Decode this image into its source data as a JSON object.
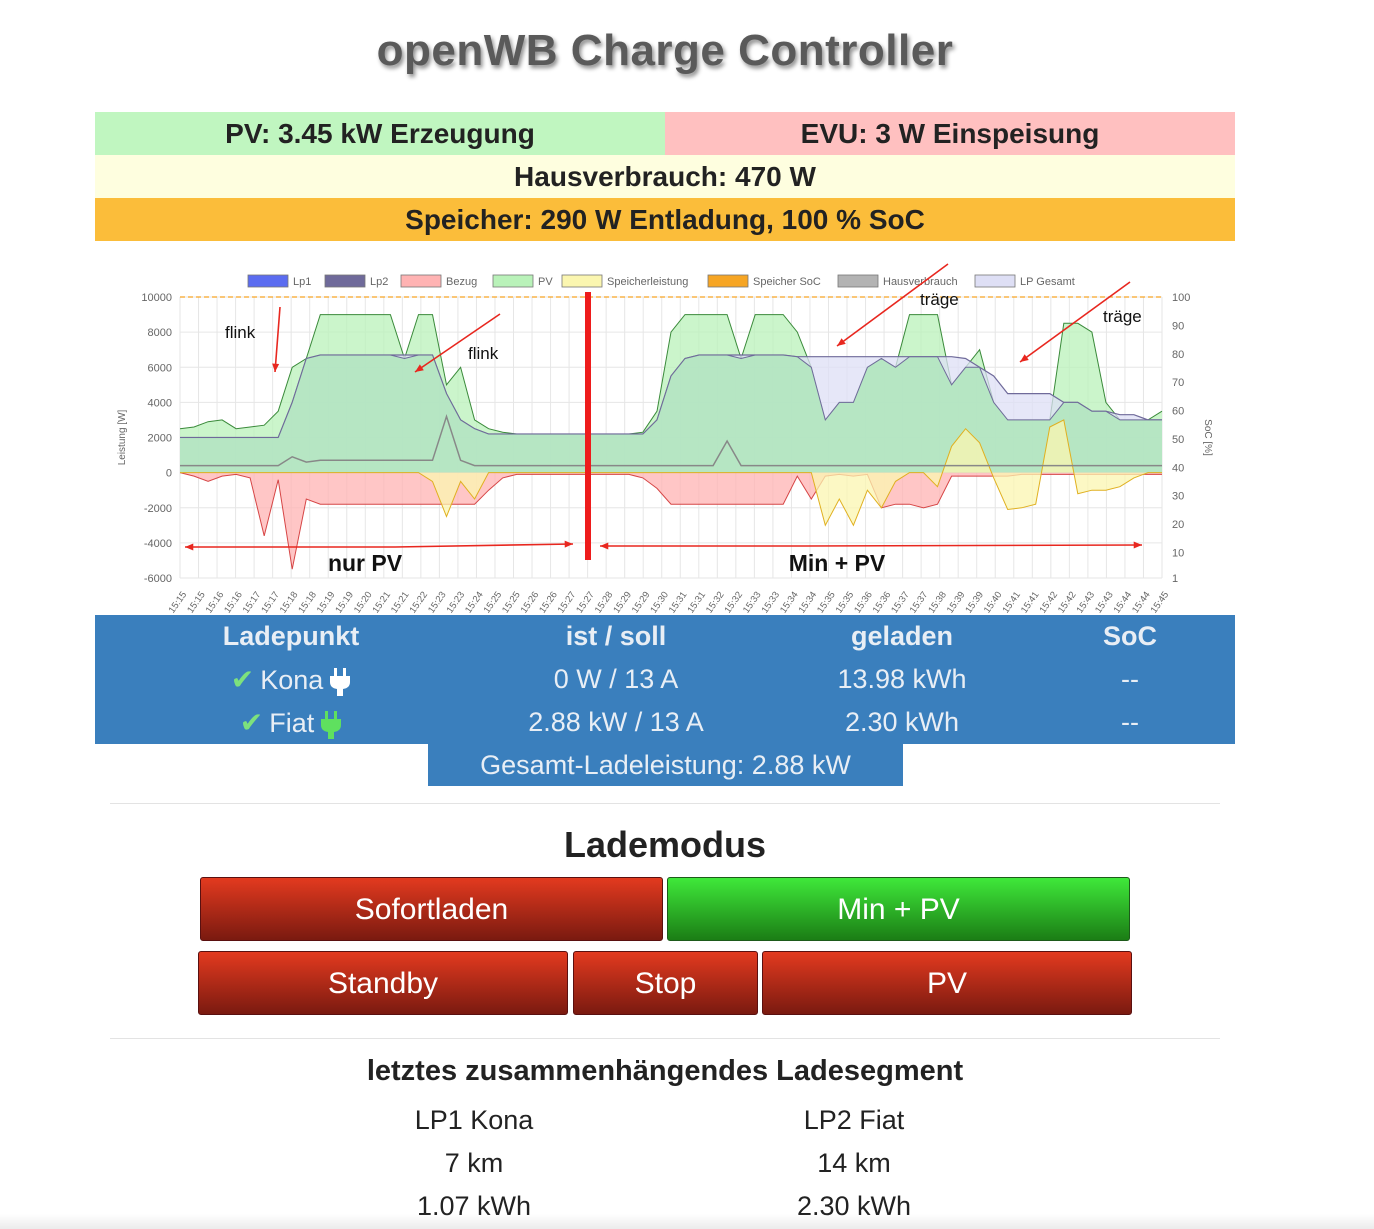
{
  "title": "openWB Charge Controller",
  "status": {
    "pv": "PV: 3.45 kW Erzeugung",
    "evu": "EVU: 3 W Einspeisung",
    "haus": "Hausverbrauch: 470 W",
    "speicher": "Speicher: 290 W Entladung, 100 % SoC"
  },
  "chart_data": {
    "type": "area",
    "legend": [
      "Lp1",
      "Lp2",
      "Bezug",
      "PV",
      "Speicherleistung",
      "Speicher SoC",
      "Hausverbrauch",
      "LP Gesamt"
    ],
    "legend_colors": [
      "#5b6cf0",
      "#6f6a9a",
      "#ffb3b3",
      "#b9f2b9",
      "#fbf6b0",
      "#f6a524",
      "#b3b3b3",
      "#dedff5"
    ],
    "ylabel": "Leistung [W]",
    "y2label": "SoC [%]",
    "yticks": [
      "10000",
      "8000",
      "6000",
      "4000",
      "2000",
      "0",
      "-2000",
      "-4000",
      "-6000"
    ],
    "y2ticks": [
      "100",
      "90",
      "80",
      "70",
      "60",
      "50",
      "40",
      "30",
      "20",
      "10",
      "1"
    ],
    "ylim": [
      -6000,
      10000
    ],
    "y2lim": [
      1,
      100
    ],
    "xticks": [
      "15:15",
      "15:15",
      "15:16",
      "15:16",
      "15:17",
      "15:17",
      "15:18",
      "15:18",
      "15:19",
      "15:19",
      "15:20",
      "15:21",
      "15:21",
      "15:22",
      "15:23",
      "15:23",
      "15:24",
      "15:25",
      "15:25",
      "15:26",
      "15:26",
      "15:27",
      "15:27",
      "15:28",
      "15:29",
      "15:29",
      "15:30",
      "15:31",
      "15:31",
      "15:32",
      "15:32",
      "15:33",
      "15:33",
      "15:34",
      "15:34",
      "15:35",
      "15:35",
      "15:36",
      "15:36",
      "15:37",
      "15:37",
      "15:38",
      "15:39",
      "15:39",
      "15:40",
      "15:41",
      "15:41",
      "15:42",
      "15:42",
      "15:43",
      "15:43",
      "15:44",
      "15:44",
      "15:45"
    ],
    "pv": [
      2500,
      2600,
      2900,
      3000,
      2500,
      2600,
      2700,
      3500,
      6000,
      6500,
      9000,
      9000,
      9000,
      9000,
      9000,
      9000,
      6500,
      9000,
      9000,
      5000,
      6000,
      3000,
      2500,
      2300,
      2200,
      2200,
      2200,
      2200,
      2200,
      2200,
      2200,
      2200,
      2200,
      2300,
      3500,
      8000,
      9000,
      9000,
      9000,
      9000,
      6500,
      9000,
      9000,
      9000,
      8000,
      6000,
      3000,
      4000,
      4000,
      6000,
      6500,
      6000,
      9000,
      9000,
      9000,
      5000,
      6000,
      7000,
      4000,
      3000,
      3000,
      3000,
      3000,
      8500,
      8500,
      8000,
      4000,
      3000,
      3000,
      3000,
      3500
    ],
    "lp_gesamt": [
      2000,
      2000,
      2000,
      2000,
      2000,
      2000,
      2000,
      2000,
      4000,
      6500,
      6700,
      6700,
      6700,
      6700,
      6700,
      6700,
      6700,
      6700,
      6700,
      4500,
      3000,
      2500,
      2200,
      2200,
      2200,
      2200,
      2200,
      2200,
      2200,
      2200,
      2200,
      2200,
      2200,
      2200,
      3000,
      5500,
      6500,
      6700,
      6700,
      6700,
      6700,
      6700,
      6700,
      6700,
      6600,
      6600,
      6600,
      6600,
      6600,
      6600,
      6600,
      6600,
      6600,
      6600,
      6600,
      6600,
      6500,
      6000,
      5500,
      4500,
      4500,
      4500,
      4500,
      4000,
      4000,
      3500,
      3500,
      3300,
      3300,
      3000,
      3000
    ],
    "bezug": [
      0,
      -200,
      -500,
      -200,
      -100,
      -300,
      -3600,
      -400,
      -5500,
      -1500,
      -1800,
      -1800,
      -1800,
      -1800,
      -1800,
      -1800,
      -1800,
      -1800,
      -1800,
      -1800,
      -1800,
      -1800,
      -1000,
      -300,
      -100,
      -100,
      -100,
      -100,
      -100,
      -100,
      -100,
      -100,
      -100,
      -300,
      -900,
      -1800,
      -1800,
      -1800,
      -1800,
      -1800,
      -1800,
      -1800,
      -1800,
      -1800,
      -200,
      -1500,
      -200,
      -100,
      -200,
      -100,
      -2000,
      -1800,
      -1800,
      -2000,
      -1800,
      -200,
      -200,
      -200,
      -200,
      -200,
      -100,
      -100,
      -100,
      -100,
      -100,
      -100,
      -100,
      -100,
      -100,
      -100,
      -100
    ],
    "speicherleistung": [
      0,
      0,
      0,
      0,
      0,
      0,
      0,
      0,
      0,
      0,
      0,
      0,
      0,
      0,
      0,
      0,
      0,
      0,
      -500,
      -2500,
      -500,
      -1500,
      0,
      0,
      0,
      0,
      0,
      0,
      0,
      0,
      0,
      0,
      0,
      0,
      0,
      0,
      0,
      0,
      0,
      0,
      0,
      0,
      0,
      0,
      0,
      0,
      -3000,
      -1500,
      -3000,
      -1000,
      -2000,
      -500,
      0,
      0,
      -800,
      1500,
      2500,
      1700,
      -300,
      -2100,
      -2000,
      -1800,
      2600,
      3000,
      -1200,
      -1000,
      -1000,
      -800,
      -300,
      0,
      0
    ],
    "hausverbrauch": [
      400,
      400,
      400,
      400,
      400,
      400,
      400,
      400,
      900,
      600,
      700,
      700,
      700,
      700,
      700,
      700,
      700,
      700,
      700,
      3200,
      700,
      400,
      400,
      400,
      400,
      400,
      400,
      400,
      400,
      400,
      400,
      400,
      400,
      400,
      400,
      400,
      400,
      400,
      400,
      1800,
      400,
      400,
      400,
      400,
      400,
      400,
      400,
      400,
      400,
      400,
      400,
      400,
      400,
      400,
      400,
      400,
      400,
      400,
      400,
      400,
      400,
      400,
      400,
      400,
      400,
      400,
      400,
      400,
      400,
      400,
      400
    ],
    "soc_line": 100,
    "annotations": [
      "flink",
      "flink",
      "träge",
      "träge",
      "nur PV",
      "Min + PV"
    ]
  },
  "ladepunkte": {
    "headers": [
      "Ladepunkt",
      "ist / soll",
      "geladen",
      "SoC"
    ],
    "rows": [
      {
        "name": "Kona",
        "ist_soll": "0 W / 13 A",
        "geladen": "13.98 kWh",
        "soc": "--",
        "plug_color": "#ffffff"
      },
      {
        "name": "Fiat",
        "ist_soll": "2.88 kW / 13 A",
        "geladen": "2.30 kWh",
        "soc": "--",
        "plug_color": "#5fe05f"
      }
    ],
    "gesamt": "Gesamt-Ladeleistung: 2.88 kW"
  },
  "lademodus": {
    "title": "Lademodus",
    "buttons": {
      "sofortladen": "Sofortladen",
      "minpv": "Min + PV",
      "standby": "Standby",
      "stop": "Stop",
      "pv": "PV"
    }
  },
  "segment": {
    "title": "letztes zusammenhängendes Ladesegment",
    "lp1": [
      "LP1 Kona",
      "7 km",
      "1.07 kWh"
    ],
    "lp2": [
      "LP2 Fiat",
      "14 km",
      "2.30 kWh"
    ]
  }
}
